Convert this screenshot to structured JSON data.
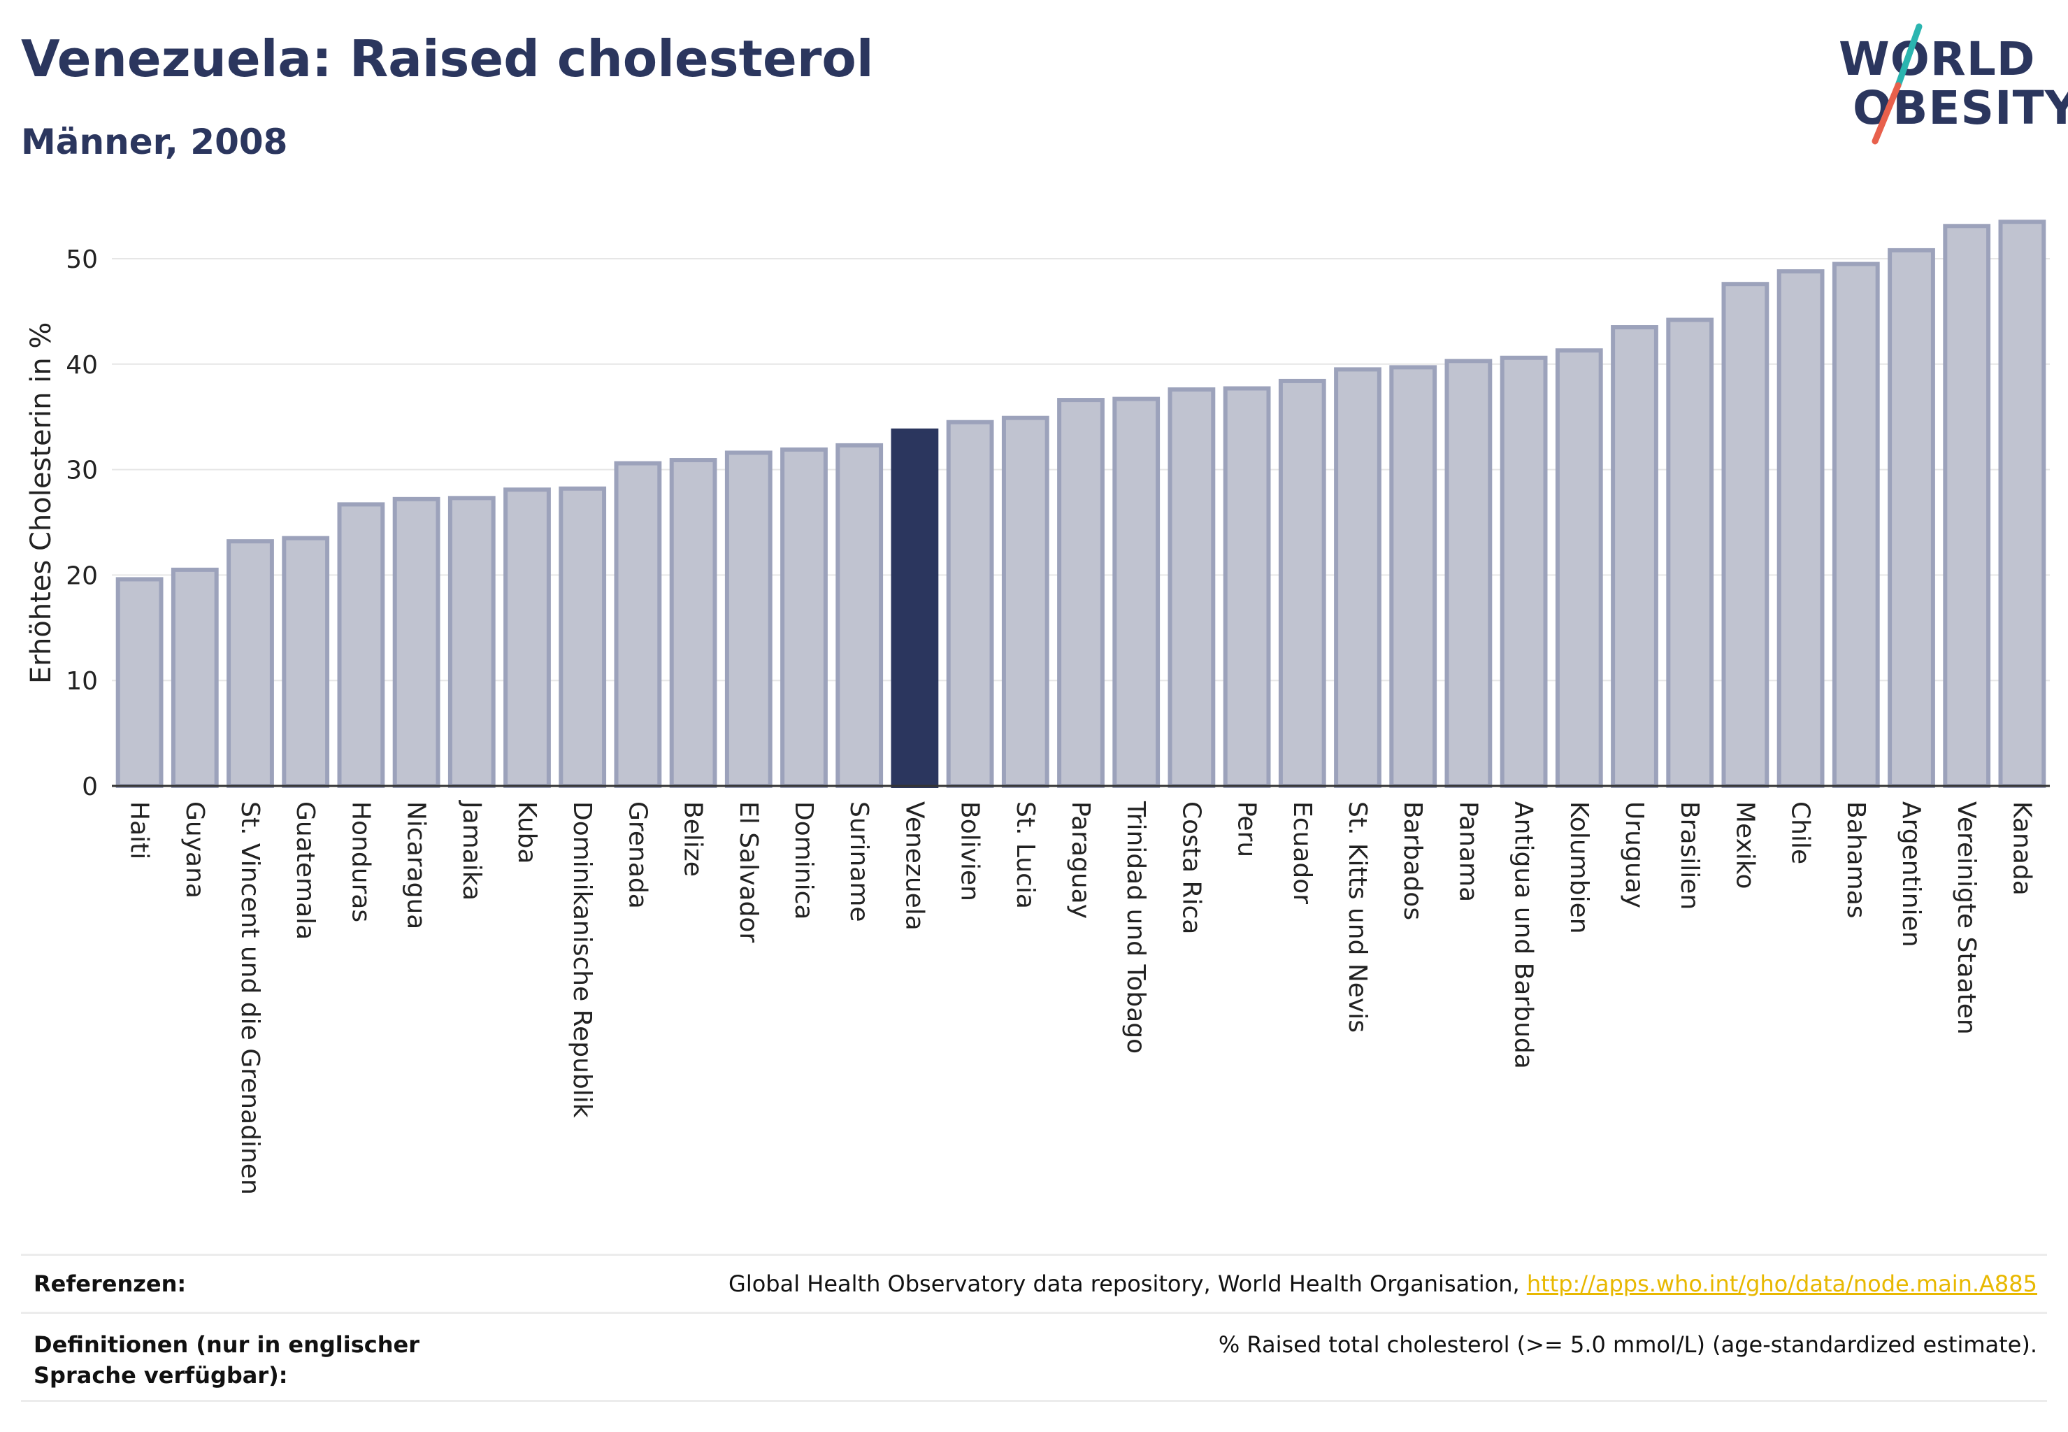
{
  "header": {
    "title": "Venezuela: Raised cholesterol",
    "subtitle": "Männer, 2008"
  },
  "logo": {
    "line1": "WORLD",
    "line2": "OBESITY",
    "colors": {
      "text": "#2b365e",
      "slash_top": "#2bb5b0",
      "slash_bottom": "#e8604c"
    }
  },
  "chart_data": {
    "type": "bar",
    "ylabel": "Erhöhtes Cholesterin in %",
    "xlabel": "",
    "ylim": [
      0,
      55
    ],
    "yticks": [
      0,
      10,
      20,
      30,
      40,
      50
    ],
    "grid": true,
    "highlight": "Venezuela",
    "colors": {
      "bar": "#c0c3d0",
      "bar_border": "#9ca2bb",
      "highlight": "#2b365e"
    },
    "categories": [
      "Haiti",
      "Guyana",
      "St. Vincent und die Grenadinen",
      "Guatemala",
      "Honduras",
      "Nicaragua",
      "Jamaika",
      "Kuba",
      "Dominikanische Republik",
      "Grenada",
      "Belize",
      "El Salvador",
      "Dominica",
      "Suriname",
      "Venezuela",
      "Bolivien",
      "St. Lucia",
      "Paraguay",
      "Trinidad und Tobago",
      "Costa Rica",
      "Peru",
      "Ecuador",
      "St. Kitts und Nevis",
      "Barbados",
      "Panama",
      "Antigua und Barbuda",
      "Kolumbien",
      "Uruguay",
      "Brasilien",
      "Mexiko",
      "Chile",
      "Bahamas",
      "Argentinien",
      "Vereinigte Staaten",
      "Kanada"
    ],
    "values": [
      19.6,
      20.5,
      23.2,
      23.5,
      26.7,
      27.2,
      27.3,
      28.1,
      28.2,
      30.6,
      30.9,
      31.6,
      31.9,
      32.3,
      33.7,
      34.5,
      34.9,
      36.6,
      36.7,
      37.6,
      37.7,
      38.4,
      39.5,
      39.7,
      40.3,
      40.6,
      41.3,
      43.5,
      44.2,
      47.6,
      48.8,
      49.5,
      50.8,
      53.1,
      53.5
    ]
  },
  "references": {
    "label": "Referenzen:",
    "text": "Global Health Observatory data repository, World Health Organisation, ",
    "link": "http://apps.who.int/gho/data/node.main.A885"
  },
  "definitions": {
    "label": "Definitionen (nur in englischer Sprache verfügbar):",
    "text": "% Raised total cholesterol (>= 5.0 mmol/L) (age-standardized estimate)."
  }
}
